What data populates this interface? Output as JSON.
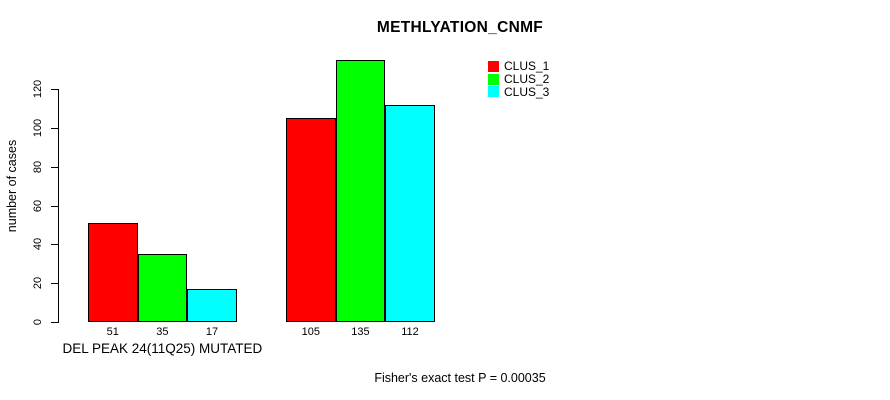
{
  "chart_data": {
    "type": "bar",
    "title": "METHLYATION_CNMF",
    "ylabel": "number of cases",
    "xlabel": "DEL PEAK 24(11Q25) MUTATED",
    "annotation": "Fisher's exact test P = 0.00035",
    "ylim": [
      0,
      120
    ],
    "yticks": [
      0,
      20,
      40,
      60,
      80,
      100,
      120
    ],
    "grid": false,
    "legend_position": "top-right",
    "categories": [
      "DEL PEAK 24(11Q25) MUTATED",
      ""
    ],
    "series": [
      {
        "name": "CLUS_1",
        "color": "#ff0000",
        "values": [
          51,
          105
        ]
      },
      {
        "name": "CLUS_2",
        "color": "#00ff00",
        "values": [
          35,
          135
        ]
      },
      {
        "name": "CLUS_3",
        "color": "#00ffff",
        "values": [
          17,
          112
        ]
      }
    ],
    "legend": {
      "entries": [
        {
          "label": "CLUS_1",
          "color": "#ff0000"
        },
        {
          "label": "CLUS_2",
          "color": "#00ff00"
        },
        {
          "label": "CLUS_3",
          "color": "#00ffff"
        }
      ]
    }
  },
  "colors": {
    "background": "#ffffff",
    "axis": "#000000",
    "text": "#000000"
  }
}
